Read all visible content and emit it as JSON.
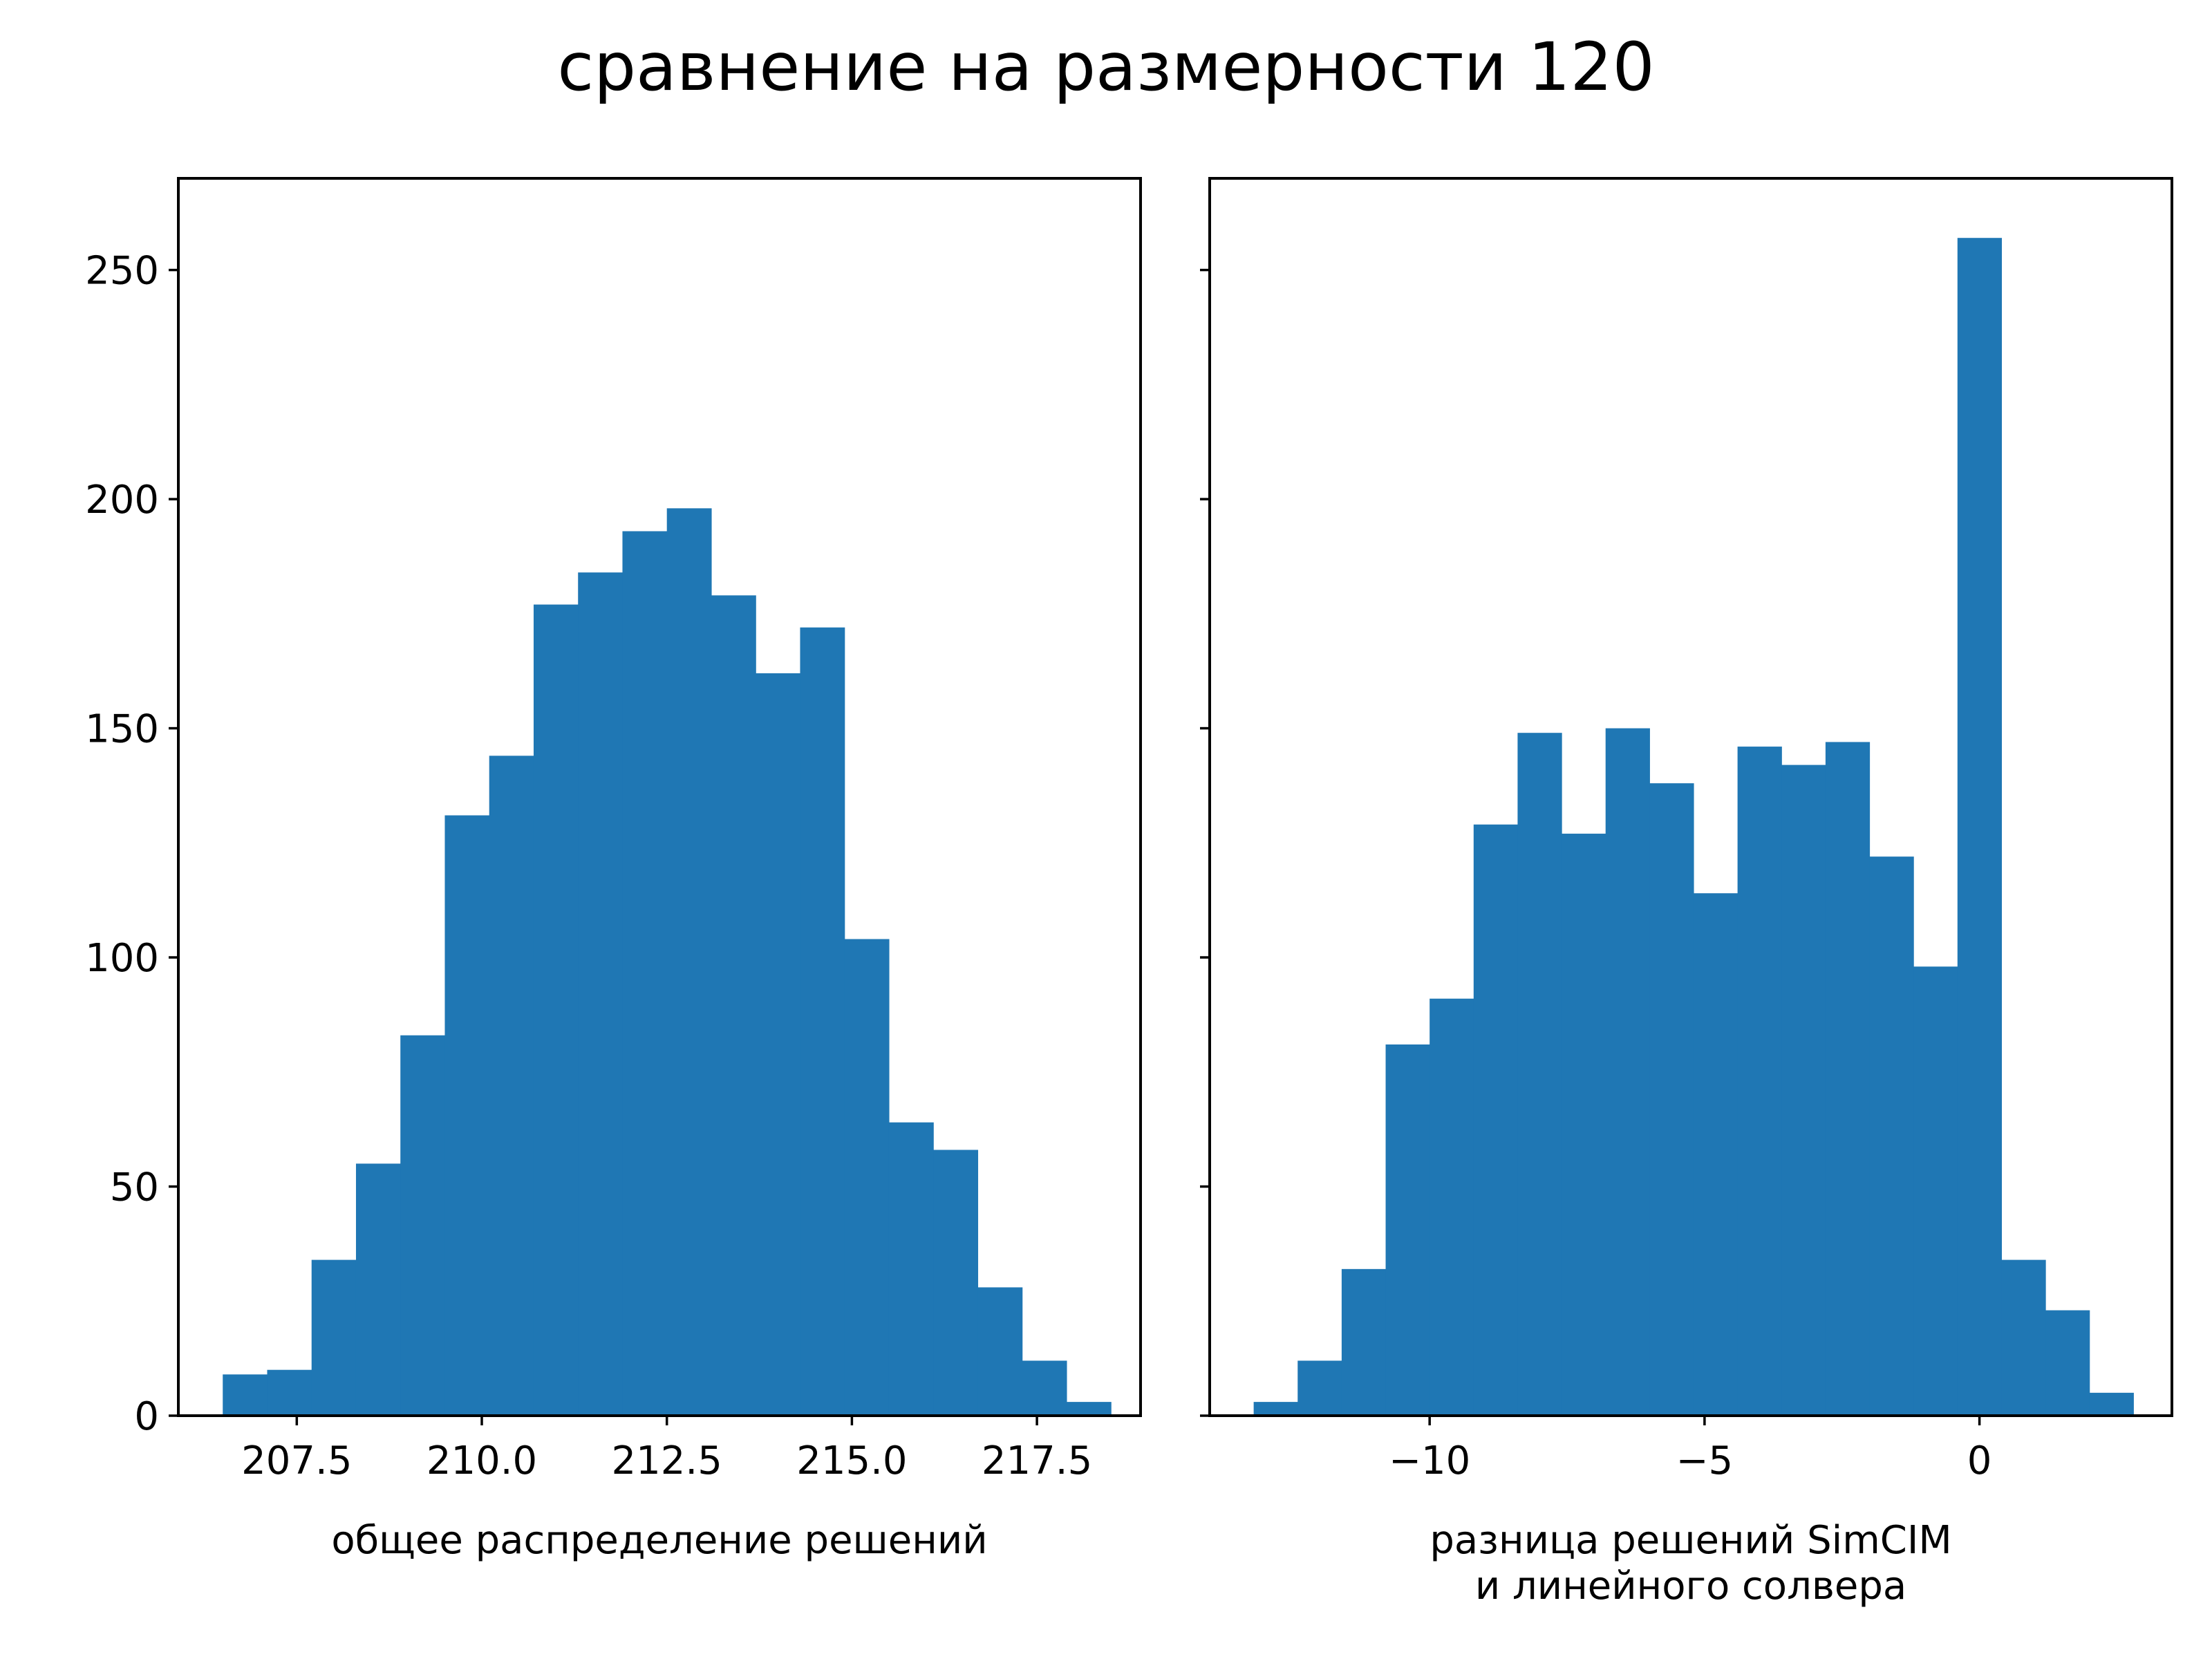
{
  "suptitle": "сравнение на размерности 120",
  "color": "#1f77b4",
  "chart_data": [
    {
      "type": "bar",
      "title": "",
      "xlabel": "общее распределение решений",
      "ylabel": "",
      "xlim": [
        205.9,
        218.9
      ],
      "ylim": [
        0,
        270
      ],
      "xticks": [
        207.5,
        210.0,
        212.5,
        215.0,
        217.5
      ],
      "xtick_labels": [
        "207.5",
        "210.0",
        "212.5",
        "215.0",
        "217.5"
      ],
      "yticks": [
        0,
        50,
        100,
        150,
        200,
        250
      ],
      "ytick_labels": [
        "0",
        "50",
        "100",
        "150",
        "200",
        "250"
      ],
      "bin_edges": [
        206.5,
        207.1,
        207.7,
        208.3,
        208.9,
        209.5,
        210.1,
        210.7,
        211.3,
        211.9,
        212.5,
        213.1,
        213.7,
        214.3,
        214.9,
        215.5,
        216.1,
        216.7,
        217.3,
        217.9,
        218.5
      ],
      "values": [
        9,
        10,
        34,
        55,
        83,
        131,
        144,
        177,
        184,
        193,
        198,
        179,
        162,
        172,
        104,
        64,
        58,
        28,
        12,
        3
      ]
    },
    {
      "type": "bar",
      "title": "",
      "xlabel": "разница решений SimCIM\nи линейного солвера",
      "ylabel": "",
      "xlim": [
        -14.0,
        3.5
      ],
      "ylim": [
        0,
        270
      ],
      "xticks": [
        -10,
        -5,
        0
      ],
      "xtick_labels": [
        "−10",
        "−5",
        "0"
      ],
      "yticks": [
        0,
        50,
        100,
        150,
        200,
        250
      ],
      "ytick_labels": [
        "",
        "",
        "",
        "",
        "",
        ""
      ],
      "bin_edges": [
        -13.2,
        -12.4,
        -11.6,
        -10.8,
        -10.0,
        -9.2,
        -8.4,
        -7.6,
        -6.8,
        -6.0,
        -5.2,
        -4.4,
        -3.6,
        -2.8,
        -2.0,
        -1.2,
        -0.4,
        0.4,
        1.2,
        2.0,
        2.8
      ],
      "values": [
        3,
        12,
        32,
        81,
        91,
        129,
        149,
        127,
        150,
        138,
        114,
        146,
        142,
        147,
        122,
        98,
        257,
        34,
        23,
        5
      ]
    }
  ]
}
